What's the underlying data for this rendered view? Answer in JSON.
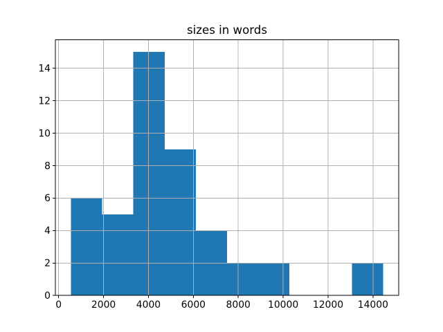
{
  "figure": {
    "background": "#ffffff"
  },
  "chart_data": {
    "type": "bar",
    "variant": "histogram",
    "title": "sizes in words",
    "xlabel": "",
    "ylabel": "",
    "bin_edges": [
      550,
      1940,
      3330,
      4720,
      6110,
      7500,
      8890,
      10280,
      11670,
      13060,
      14450
    ],
    "counts": [
      6,
      5,
      15,
      9,
      4,
      2,
      2,
      0,
      0,
      2
    ],
    "x_ticks": [
      0,
      2000,
      4000,
      6000,
      8000,
      10000,
      12000,
      14000
    ],
    "y_ticks": [
      0,
      2,
      4,
      6,
      8,
      10,
      12,
      14
    ],
    "xlim": [
      -145,
      15145
    ],
    "ylim": [
      0,
      15.75
    ],
    "grid": true,
    "grid_above_bars": true,
    "legend": null,
    "bar_color": "#1f77b4",
    "grid_color": "#b0b0b0",
    "spine_color": "#000000",
    "text_color": "#000000"
  }
}
